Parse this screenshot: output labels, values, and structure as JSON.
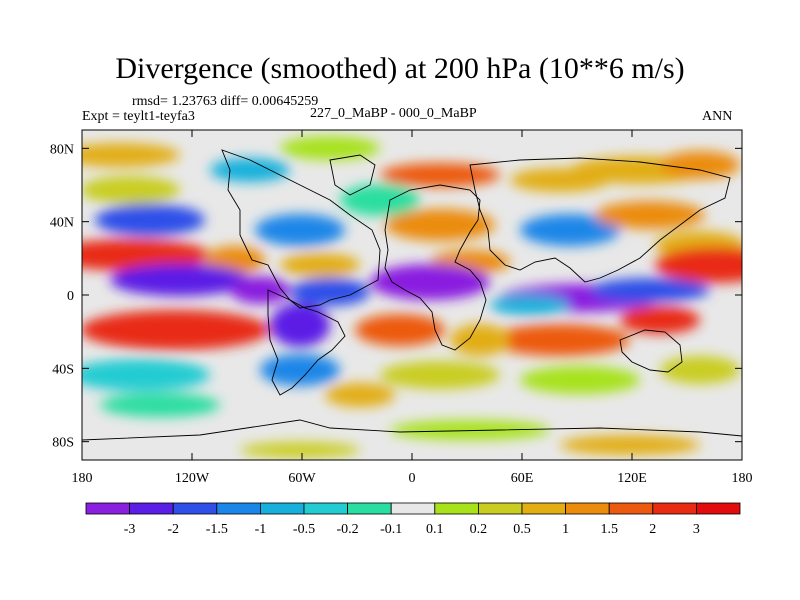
{
  "chart_data": {
    "type": "heatmap",
    "title": "Divergence (smoothed) at 200 hPa (10**6 m/s)",
    "subtitle_stats": "rmsd= 1.23763 diff= 0.00645259",
    "experiment": "Expt = teylt1-teyfa3",
    "comparison": "227_0_MaBP - 000_0_MaBP",
    "season": "ANN",
    "x_ticks": [
      "180",
      "120W",
      "60W",
      "0",
      "60E",
      "120E",
      "180"
    ],
    "x_tick_values": [
      -180,
      -120,
      -60,
      0,
      60,
      120,
      180
    ],
    "y_ticks": [
      "80N",
      "40N",
      "0",
      "40S",
      "80S"
    ],
    "y_tick_values": [
      80,
      40,
      0,
      -40,
      -80
    ],
    "xlim": [
      -180,
      180
    ],
    "ylim": [
      -90,
      90
    ],
    "colorbar": {
      "labels": [
        "-3",
        "-2",
        "-1.5",
        "-1",
        "-0.5",
        "-0.2",
        "-0.1",
        "0.1",
        "0.2",
        "0.5",
        "1",
        "1.5",
        "2",
        "3"
      ],
      "bounds": [
        -3,
        -2,
        -1.5,
        -1,
        -0.5,
        -0.2,
        -0.1,
        0.1,
        0.2,
        0.5,
        1,
        1.5,
        2,
        3
      ],
      "colors": [
        "#8a1fe0",
        "#5b1ee6",
        "#2f50e8",
        "#1c86e8",
        "#17b0dc",
        "#23ccd2",
        "#29dea0",
        "#e8e8e8",
        "#a7e21b",
        "#c9cd22",
        "#e2ae12",
        "#eb8c0c",
        "#ec5a0f",
        "#e82c14",
        "#e20c0c"
      ]
    }
  }
}
